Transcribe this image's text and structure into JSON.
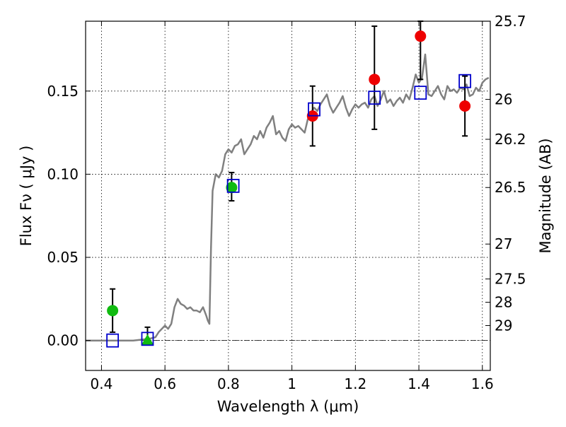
{
  "chart_data": {
    "type": "scatter",
    "title": "",
    "xlabel": "Wavelength  λ (μm)",
    "ylabel": "Flux  Fν  ( μJy )",
    "ylabel_right": "Magnitude (AB)",
    "xlim": [
      0.35,
      1.625
    ],
    "ylim": [
      -0.018,
      0.192
    ],
    "grid": true,
    "x_ticks": [
      0.4,
      0.6,
      0.8,
      1.0,
      1.2,
      1.4,
      1.6
    ],
    "x_tick_labels": [
      "0.4",
      "0.6",
      "0.8",
      "1",
      "1.2",
      "1.4",
      "1.6"
    ],
    "y_ticks": [
      0.0,
      0.05,
      0.1,
      0.15
    ],
    "y_tick_labels": [
      "0.00",
      "0.05",
      "0.10",
      "0.15"
    ],
    "right_ticks": [
      {
        "label": "25.7",
        "flux": 0.192
      },
      {
        "label": "26",
        "flux": 0.145
      },
      {
        "label": "26.2",
        "flux": 0.121
      },
      {
        "label": "26.5",
        "flux": 0.092
      },
      {
        "label": "27",
        "flux": 0.058
      },
      {
        "label": "27.5",
        "flux": 0.037
      },
      {
        "label": "28",
        "flux": 0.023
      },
      {
        "label": "29",
        "flux": 0.009
      }
    ],
    "zero_line": 0.0,
    "colors": {
      "model": "#808080",
      "green": "#11bb11",
      "red": "#ee0000",
      "square": "#0000cc",
      "errorbar": "#000000"
    },
    "series": [
      {
        "kind": "model",
        "x": [
          0.35,
          0.4,
          0.45,
          0.5,
          0.55,
          0.57,
          0.58,
          0.6,
          0.61,
          0.62,
          0.63,
          0.64,
          0.65,
          0.66,
          0.67,
          0.68,
          0.69,
          0.7,
          0.71,
          0.72,
          0.73,
          0.735,
          0.74,
          0.745,
          0.75,
          0.76,
          0.77,
          0.78,
          0.79,
          0.8,
          0.81,
          0.82,
          0.83,
          0.84,
          0.85,
          0.86,
          0.87,
          0.88,
          0.89,
          0.9,
          0.91,
          0.92,
          0.93,
          0.94,
          0.95,
          0.96,
          0.97,
          0.98,
          0.99,
          1.0,
          1.01,
          1.02,
          1.03,
          1.04,
          1.05,
          1.06,
          1.07,
          1.08,
          1.09,
          1.1,
          1.11,
          1.12,
          1.13,
          1.14,
          1.15,
          1.16,
          1.17,
          1.18,
          1.19,
          1.2,
          1.21,
          1.22,
          1.23,
          1.24,
          1.25,
          1.26,
          1.27,
          1.28,
          1.29,
          1.3,
          1.31,
          1.32,
          1.33,
          1.34,
          1.35,
          1.36,
          1.37,
          1.38,
          1.39,
          1.4,
          1.41,
          1.42,
          1.43,
          1.44,
          1.45,
          1.46,
          1.47,
          1.48,
          1.49,
          1.5,
          1.51,
          1.52,
          1.53,
          1.54,
          1.55,
          1.56,
          1.57,
          1.58,
          1.59,
          1.6,
          1.61,
          1.62
        ],
        "y": [
          0.0,
          0.0,
          0.0,
          0.0,
          0.001,
          0.002,
          0.005,
          0.009,
          0.007,
          0.01,
          0.02,
          0.025,
          0.022,
          0.021,
          0.019,
          0.02,
          0.018,
          0.018,
          0.017,
          0.02,
          0.015,
          0.012,
          0.01,
          0.055,
          0.09,
          0.1,
          0.098,
          0.102,
          0.112,
          0.115,
          0.113,
          0.117,
          0.118,
          0.121,
          0.112,
          0.115,
          0.118,
          0.123,
          0.121,
          0.126,
          0.122,
          0.128,
          0.131,
          0.135,
          0.124,
          0.126,
          0.122,
          0.12,
          0.127,
          0.13,
          0.128,
          0.129,
          0.127,
          0.125,
          0.133,
          0.137,
          0.14,
          0.138,
          0.142,
          0.145,
          0.148,
          0.141,
          0.137,
          0.14,
          0.143,
          0.147,
          0.14,
          0.135,
          0.139,
          0.142,
          0.14,
          0.142,
          0.143,
          0.14,
          0.145,
          0.147,
          0.141,
          0.145,
          0.15,
          0.143,
          0.145,
          0.141,
          0.144,
          0.146,
          0.143,
          0.148,
          0.145,
          0.152,
          0.16,
          0.155,
          0.158,
          0.172,
          0.148,
          0.147,
          0.15,
          0.153,
          0.148,
          0.145,
          0.153,
          0.15,
          0.151,
          0.149,
          0.152,
          0.151,
          0.154,
          0.147,
          0.148,
          0.152,
          0.15,
          0.155,
          0.157,
          0.158
        ]
      },
      {
        "kind": "observed-circle",
        "color_key": "green",
        "points": [
          {
            "x": 0.435,
            "y": 0.018,
            "err_low": 0.005,
            "err_high": 0.031
          },
          {
            "x": 0.81,
            "y": 0.092,
            "err_low": 0.084,
            "err_high": 0.101
          }
        ]
      },
      {
        "kind": "observed-triangle",
        "color_key": "green",
        "points": [
          {
            "x": 0.545,
            "y": 0.0,
            "err_low": -0.002,
            "err_high": 0.008
          }
        ]
      },
      {
        "kind": "observed-circle",
        "color_key": "red",
        "points": [
          {
            "x": 1.065,
            "y": 0.135,
            "err_low": 0.117,
            "err_high": 0.153
          },
          {
            "x": 1.26,
            "y": 0.157,
            "err_low": 0.127,
            "err_high": 0.189
          },
          {
            "x": 1.405,
            "y": 0.183,
            "err_low": 0.157,
            "err_high": 0.192
          },
          {
            "x": 1.545,
            "y": 0.141,
            "err_low": 0.123,
            "err_high": 0.159
          }
        ]
      },
      {
        "kind": "model-square",
        "color_key": "square",
        "points": [
          {
            "x": 0.435,
            "y": 0.0
          },
          {
            "x": 0.545,
            "y": 0.001
          },
          {
            "x": 0.815,
            "y": 0.093
          },
          {
            "x": 1.07,
            "y": 0.139
          },
          {
            "x": 1.26,
            "y": 0.146
          },
          {
            "x": 1.405,
            "y": 0.149
          },
          {
            "x": 1.545,
            "y": 0.156
          }
        ]
      }
    ]
  }
}
